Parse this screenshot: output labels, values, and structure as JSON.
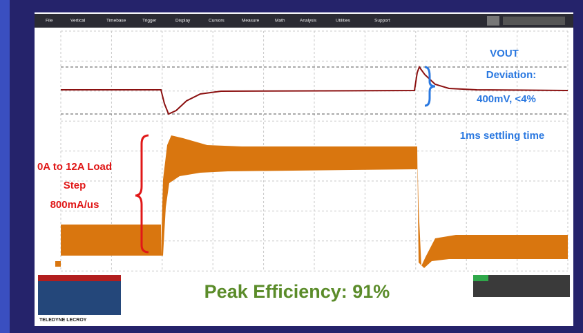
{
  "toolbar": [
    "File",
    "Vertical",
    "Timebase",
    "Trigger",
    "Display",
    "Cursors",
    "Measure",
    "Math",
    "Analysis",
    "Utilities",
    "Support"
  ],
  "annotations": {
    "vout": [
      "VOUT",
      "Deviation:",
      "400mV, <4%"
    ],
    "settling": "1ms settling time",
    "load_step": [
      "0A to 12A Load",
      "Step",
      "800mA/us"
    ],
    "efficiency": "Peak Efficiency: 91%"
  },
  "footer": {
    "brand": "TELEDYNE LECROY"
  }
}
